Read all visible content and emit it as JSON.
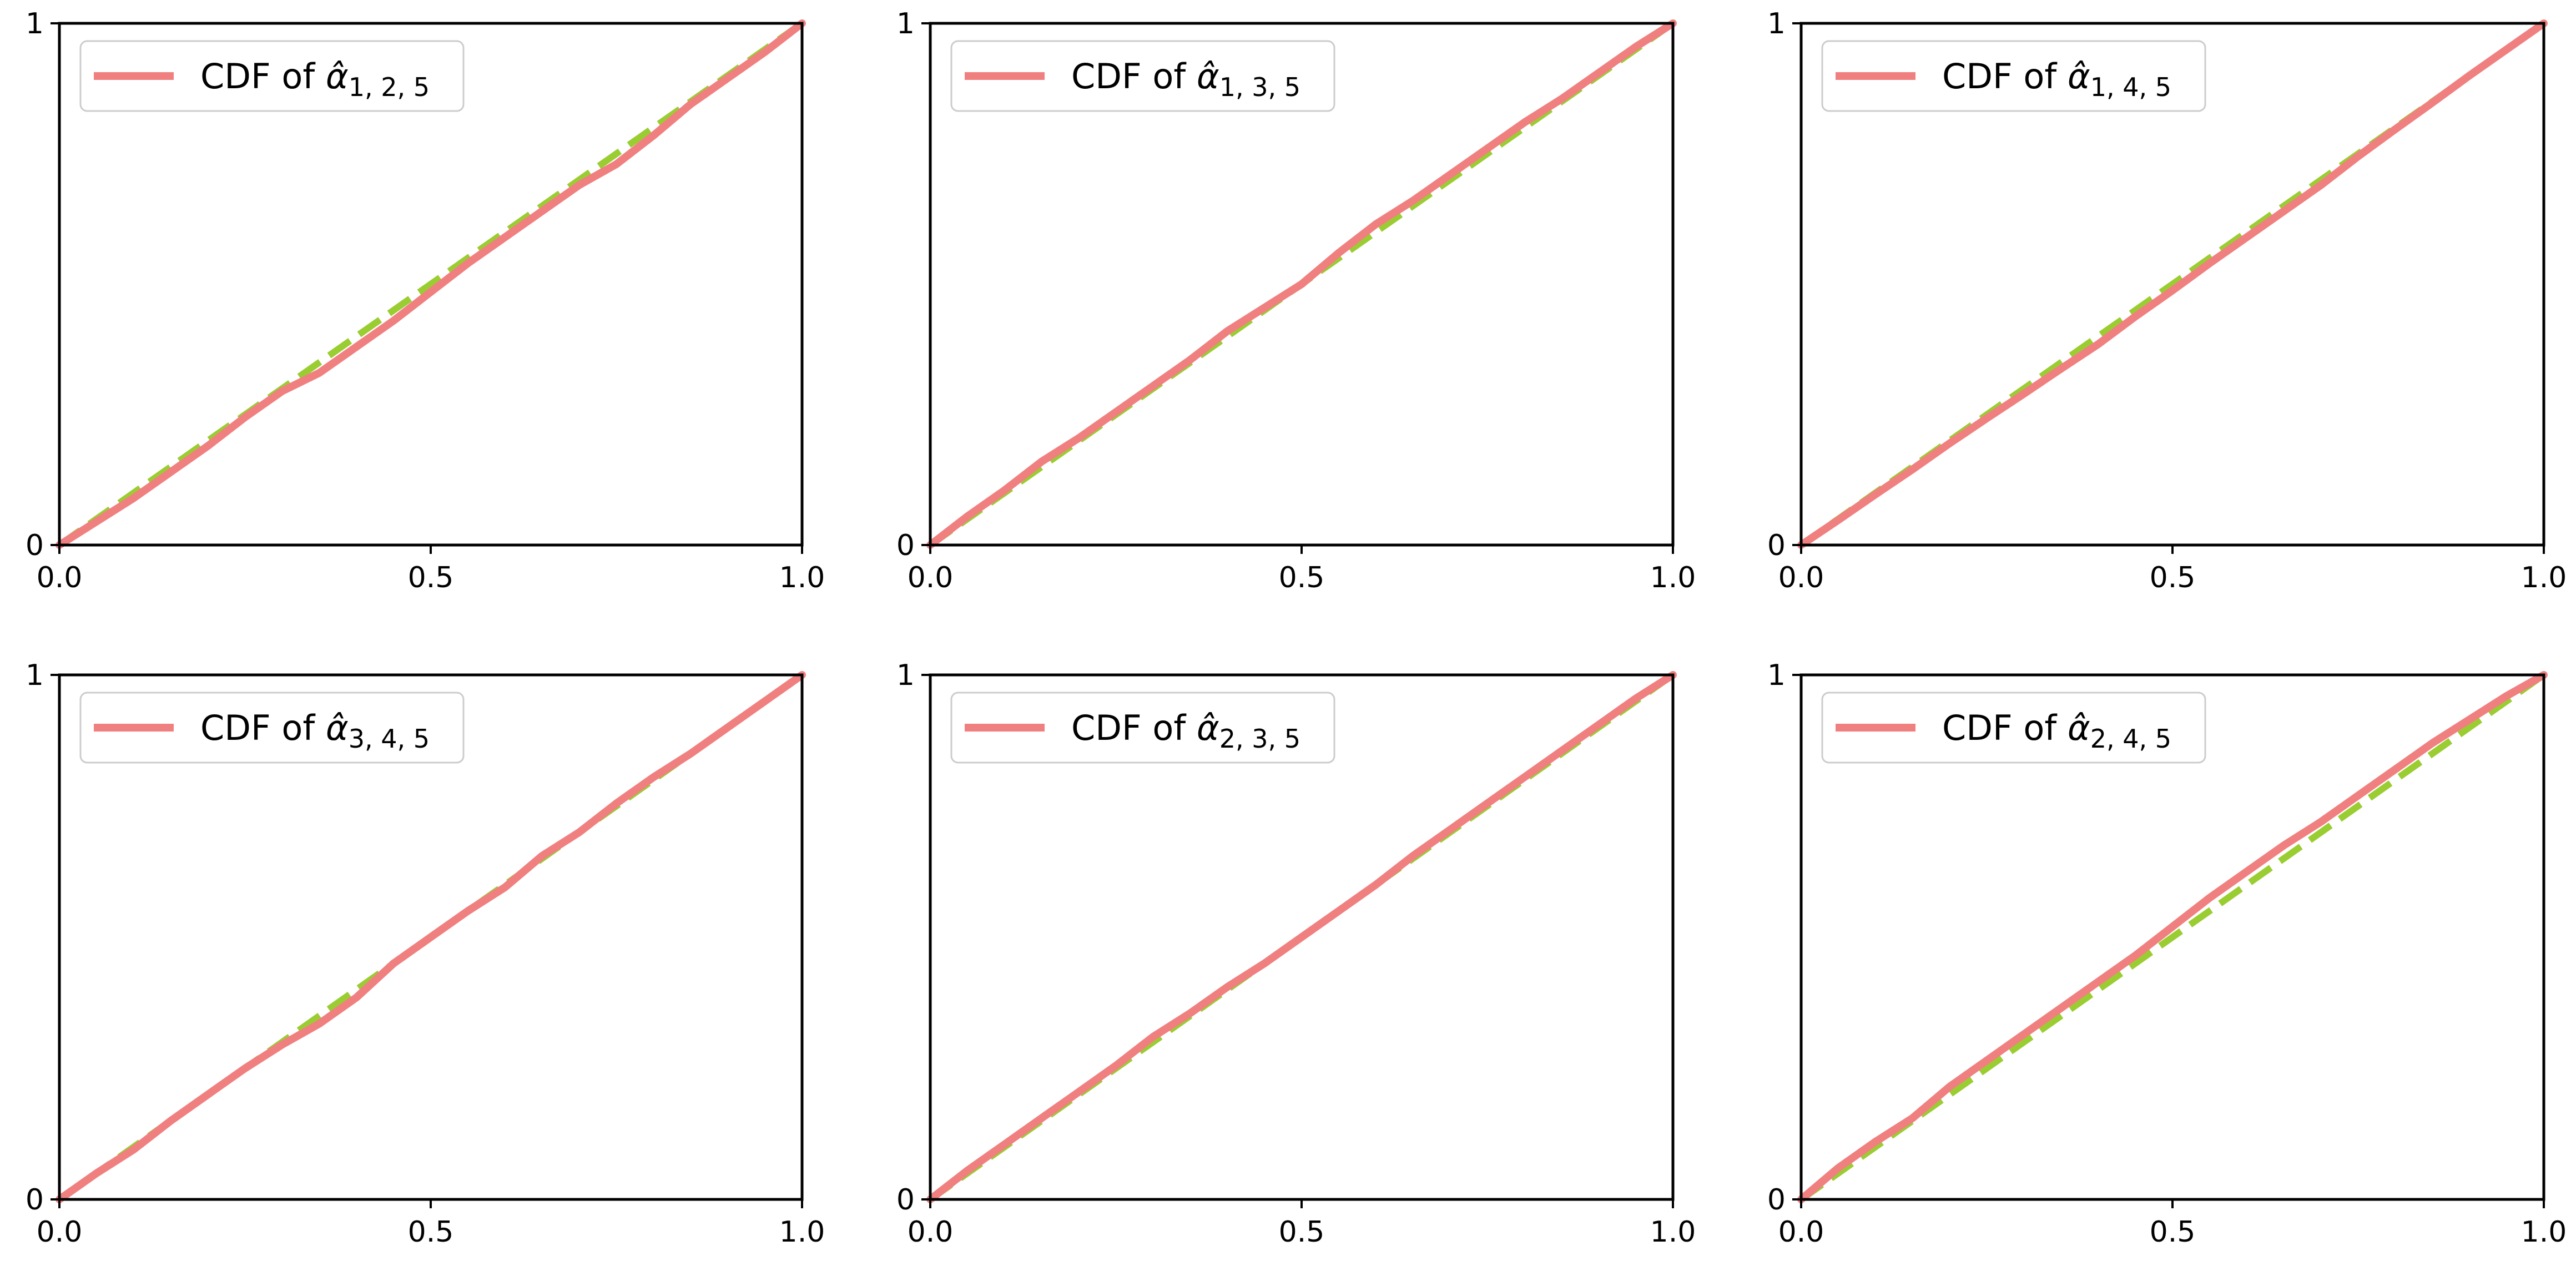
{
  "colors": {
    "cdf_line": "#f08080",
    "reference_line": "#9acd32",
    "axes": "#000000",
    "background": "#ffffff"
  },
  "chart_data": [
    {
      "type": "line",
      "legend": {
        "text": "CDF of ",
        "symbol": "α̂",
        "subscript": "1, 2, 5",
        "placement": "upper-left"
      },
      "xlim": [
        0,
        1
      ],
      "ylim": [
        0,
        1
      ],
      "xticks": [
        "0.0",
        "0.5",
        "1.0"
      ],
      "yticks": [
        "0",
        "1"
      ],
      "grid": false,
      "series": [
        {
          "name": "CDF of α̂1,2,5",
          "style": "solid",
          "x": [
            0,
            0.05,
            0.1,
            0.15,
            0.2,
            0.25,
            0.3,
            0.35,
            0.4,
            0.45,
            0.5,
            0.55,
            0.6,
            0.65,
            0.7,
            0.75,
            0.8,
            0.85,
            0.9,
            0.95,
            1.0
          ],
          "y": [
            0,
            0.045,
            0.09,
            0.14,
            0.19,
            0.245,
            0.295,
            0.33,
            0.38,
            0.43,
            0.485,
            0.54,
            0.59,
            0.64,
            0.69,
            0.73,
            0.785,
            0.845,
            0.895,
            0.945,
            1.0
          ]
        },
        {
          "style": "dashed",
          "x": [
            0,
            1
          ],
          "y": [
            0,
            1
          ]
        }
      ]
    },
    {
      "type": "line",
      "legend": {
        "text": "CDF of ",
        "symbol": "α̂",
        "subscript": "1, 3, 5",
        "placement": "upper-left"
      },
      "xlim": [
        0,
        1
      ],
      "ylim": [
        0,
        1
      ],
      "xticks": [
        "0.0",
        "0.5",
        "1.0"
      ],
      "yticks": [
        "0",
        "1"
      ],
      "grid": false,
      "series": [
        {
          "name": "CDF of α̂1,3,5",
          "style": "solid",
          "x": [
            0,
            0.05,
            0.1,
            0.15,
            0.2,
            0.25,
            0.3,
            0.35,
            0.4,
            0.45,
            0.5,
            0.55,
            0.6,
            0.65,
            0.7,
            0.75,
            0.8,
            0.85,
            0.9,
            0.95,
            1.0
          ],
          "y": [
            0,
            0.055,
            0.105,
            0.16,
            0.205,
            0.255,
            0.305,
            0.355,
            0.41,
            0.455,
            0.5,
            0.56,
            0.615,
            0.66,
            0.71,
            0.76,
            0.81,
            0.855,
            0.905,
            0.955,
            1.0
          ]
        },
        {
          "style": "dashed",
          "x": [
            0,
            1
          ],
          "y": [
            0,
            1
          ]
        }
      ]
    },
    {
      "type": "line",
      "legend": {
        "text": "CDF of ",
        "symbol": "α̂",
        "subscript": "1, 4, 5",
        "placement": "upper-left"
      },
      "xlim": [
        0,
        1
      ],
      "ylim": [
        0,
        1
      ],
      "xticks": [
        "0.0",
        "0.5",
        "1.0"
      ],
      "yticks": [
        "0",
        "1"
      ],
      "grid": false,
      "series": [
        {
          "name": "CDF of α̂1,4,5",
          "style": "solid",
          "x": [
            0,
            0.05,
            0.1,
            0.15,
            0.2,
            0.25,
            0.3,
            0.35,
            0.4,
            0.45,
            0.5,
            0.55,
            0.6,
            0.65,
            0.7,
            0.75,
            0.8,
            0.85,
            0.9,
            0.95,
            1.0
          ],
          "y": [
            0,
            0.048,
            0.097,
            0.145,
            0.195,
            0.243,
            0.29,
            0.338,
            0.385,
            0.438,
            0.488,
            0.54,
            0.59,
            0.64,
            0.69,
            0.745,
            0.797,
            0.848,
            0.9,
            0.95,
            1.0
          ]
        },
        {
          "style": "dashed",
          "x": [
            0,
            1
          ],
          "y": [
            0,
            1
          ]
        }
      ]
    },
    {
      "type": "line",
      "legend": {
        "text": "CDF of ",
        "symbol": "α̂",
        "subscript": "3, 4, 5",
        "placement": "upper-left"
      },
      "xlim": [
        0,
        1
      ],
      "ylim": [
        0,
        1
      ],
      "xticks": [
        "0.0",
        "0.5",
        "1.0"
      ],
      "yticks": [
        "0",
        "1"
      ],
      "grid": false,
      "series": [
        {
          "name": "CDF of α̂3,4,5",
          "style": "solid",
          "x": [
            0,
            0.05,
            0.1,
            0.15,
            0.2,
            0.25,
            0.3,
            0.35,
            0.4,
            0.45,
            0.5,
            0.55,
            0.6,
            0.65,
            0.7,
            0.75,
            0.8,
            0.85,
            0.9,
            0.95,
            1.0
          ],
          "y": [
            0,
            0.05,
            0.095,
            0.15,
            0.2,
            0.25,
            0.295,
            0.335,
            0.385,
            0.45,
            0.5,
            0.55,
            0.595,
            0.655,
            0.7,
            0.755,
            0.805,
            0.85,
            0.9,
            0.95,
            1.0
          ]
        },
        {
          "style": "dashed",
          "x": [
            0,
            1
          ],
          "y": [
            0,
            1
          ]
        }
      ]
    },
    {
      "type": "line",
      "legend": {
        "text": "CDF of ",
        "symbol": "α̂",
        "subscript": "2, 3, 5",
        "placement": "upper-left"
      },
      "xlim": [
        0,
        1
      ],
      "ylim": [
        0,
        1
      ],
      "xticks": [
        "0.0",
        "0.5",
        "1.0"
      ],
      "yticks": [
        "0",
        "1"
      ],
      "grid": false,
      "series": [
        {
          "name": "CDF of α̂2,3,5",
          "style": "solid",
          "x": [
            0,
            0.05,
            0.1,
            0.15,
            0.2,
            0.25,
            0.3,
            0.35,
            0.4,
            0.45,
            0.5,
            0.55,
            0.6,
            0.65,
            0.7,
            0.75,
            0.8,
            0.85,
            0.9,
            0.95,
            1.0
          ],
          "y": [
            0,
            0.055,
            0.105,
            0.155,
            0.205,
            0.255,
            0.31,
            0.355,
            0.405,
            0.45,
            0.5,
            0.55,
            0.6,
            0.655,
            0.705,
            0.755,
            0.805,
            0.855,
            0.905,
            0.955,
            1.0
          ]
        },
        {
          "style": "dashed",
          "x": [
            0,
            1
          ],
          "y": [
            0,
            1
          ]
        }
      ]
    },
    {
      "type": "line",
      "legend": {
        "text": "CDF of ",
        "symbol": "α̂",
        "subscript": "2, 4, 5",
        "placement": "upper-left"
      },
      "xlim": [
        0,
        1
      ],
      "ylim": [
        0,
        1
      ],
      "xticks": [
        "0.0",
        "0.5",
        "1.0"
      ],
      "yticks": [
        "0",
        "1"
      ],
      "grid": false,
      "series": [
        {
          "name": "CDF of α̂2,4,5",
          "style": "solid",
          "x": [
            0,
            0.05,
            0.1,
            0.15,
            0.2,
            0.25,
            0.3,
            0.35,
            0.4,
            0.45,
            0.5,
            0.55,
            0.6,
            0.65,
            0.7,
            0.75,
            0.8,
            0.85,
            0.9,
            0.95,
            1.0
          ],
          "y": [
            0,
            0.06,
            0.11,
            0.155,
            0.215,
            0.265,
            0.315,
            0.365,
            0.415,
            0.465,
            0.52,
            0.575,
            0.625,
            0.675,
            0.72,
            0.77,
            0.82,
            0.87,
            0.915,
            0.96,
            1.0
          ]
        },
        {
          "style": "dashed",
          "x": [
            0,
            1
          ],
          "y": [
            0,
            1
          ]
        }
      ]
    }
  ]
}
